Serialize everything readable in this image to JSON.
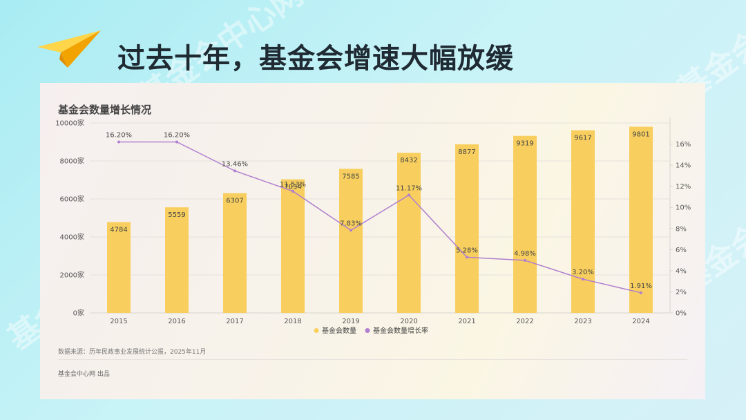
{
  "slide": {
    "title": "过去十年，基金会增速大幅放缓",
    "watermark_text": "基金会中心网"
  },
  "card": {
    "chart_title": "基金会数量增长情况",
    "source": "数据来源：历年民政事业发展统计公报，2025年11月",
    "credit": "基金会中心网 出品"
  },
  "colors": {
    "bar": "#f8cf5e",
    "line": "#b07fcf",
    "title_text": "#1f2a33",
    "plane_light": "#ffd54a",
    "plane_dark": "#f3a300"
  },
  "chart_data": {
    "type": "bar",
    "categories": [
      "2015",
      "2016",
      "2017",
      "2018",
      "2019",
      "2020",
      "2021",
      "2022",
      "2023",
      "2024"
    ],
    "series": [
      {
        "name": "基金会数量",
        "type": "bar",
        "axis": "left",
        "values": [
          4784,
          5559,
          6307,
          7034,
          7585,
          8432,
          8877,
          9319,
          9617,
          9801
        ],
        "labels": [
          "4784",
          "5559",
          "6307",
          "7034",
          "7585",
          "8432",
          "8877",
          "9319",
          "9617",
          "9801"
        ]
      },
      {
        "name": "基金会数量增长率",
        "type": "line",
        "axis": "right",
        "values": [
          16.2,
          16.2,
          13.46,
          11.53,
          7.83,
          11.17,
          5.28,
          4.98,
          3.2,
          1.91
        ],
        "labels": [
          "16.20%",
          "16.20%",
          "13.46%",
          "11.53%",
          "7.83%",
          "11.17%",
          "5.28%",
          "4.98%",
          "3.20%",
          "1.91%"
        ]
      }
    ],
    "y_left": {
      "range": [
        0,
        10000
      ],
      "ticks": [
        0,
        2000,
        4000,
        6000,
        8000,
        10000
      ],
      "tick_labels": [
        "0家",
        "2000家",
        "4000家",
        "6000家",
        "8000家",
        "10000家"
      ]
    },
    "y_right": {
      "range": [
        0,
        18
      ],
      "ticks": [
        0,
        2,
        4,
        6,
        8,
        10,
        12,
        14,
        16
      ],
      "tick_labels": [
        "0%",
        "2%",
        "4%",
        "6%",
        "8%",
        "10%",
        "12%",
        "14%",
        "16%"
      ]
    },
    "grid": true,
    "legend_position": "bottom-center"
  }
}
